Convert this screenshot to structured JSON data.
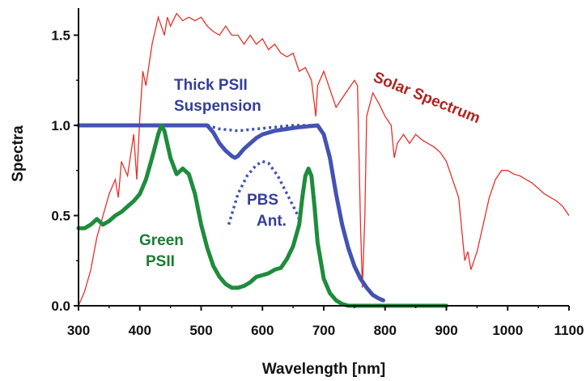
{
  "chart_data": {
    "type": "line",
    "xlabel": "Wavelength [nm]",
    "ylabel": "Spectra",
    "xlim": [
      300,
      1100
    ],
    "ylim": [
      0,
      1.65
    ],
    "xticks": [
      "300",
      "400",
      "500",
      "600",
      "700",
      "800",
      "900",
      "1000",
      "1100"
    ],
    "yticks": [
      "0.0",
      "0.5",
      "1.0",
      "1.5"
    ],
    "grid": false,
    "legend": "none",
    "colors": {
      "solar": "#e8302a",
      "thick": "#4452b4",
      "green": "#1e8c3c",
      "solar_text": "#b02320",
      "thick_text": "#333f98",
      "green_text": "#1d7a34"
    },
    "annotations": [
      {
        "text": "Solar Spectrum",
        "series": "solar"
      },
      {
        "text": "Thick PSII",
        "series": "thick"
      },
      {
        "text": "Suspension",
        "series": "thick"
      },
      {
        "text": "PBS",
        "series": "thick"
      },
      {
        "text": "Ant.",
        "series": "thick"
      },
      {
        "text": "Green",
        "series": "green"
      },
      {
        "text": "PSII",
        "series": "green"
      }
    ],
    "series": [
      {
        "id": "solar",
        "style": "solid-thin",
        "points": [
          [
            300,
            0
          ],
          [
            310,
            0.08
          ],
          [
            320,
            0.2
          ],
          [
            330,
            0.38
          ],
          [
            340,
            0.5
          ],
          [
            350,
            0.62
          ],
          [
            360,
            0.7
          ],
          [
            365,
            0.6
          ],
          [
            370,
            0.8
          ],
          [
            380,
            0.72
          ],
          [
            390,
            0.95
          ],
          [
            395,
            0.7
          ],
          [
            400,
            1.05
          ],
          [
            405,
            1.3
          ],
          [
            410,
            1.22
          ],
          [
            420,
            1.45
          ],
          [
            430,
            1.6
          ],
          [
            440,
            1.5
          ],
          [
            445,
            1.6
          ],
          [
            450,
            1.55
          ],
          [
            460,
            1.62
          ],
          [
            470,
            1.58
          ],
          [
            480,
            1.6
          ],
          [
            490,
            1.58
          ],
          [
            500,
            1.6
          ],
          [
            510,
            1.55
          ],
          [
            520,
            1.52
          ],
          [
            530,
            1.5
          ],
          [
            540,
            1.55
          ],
          [
            550,
            1.5
          ],
          [
            560,
            1.5
          ],
          [
            570,
            1.45
          ],
          [
            580,
            1.5
          ],
          [
            590,
            1.45
          ],
          [
            600,
            1.48
          ],
          [
            610,
            1.42
          ],
          [
            620,
            1.45
          ],
          [
            630,
            1.4
          ],
          [
            640,
            1.38
          ],
          [
            650,
            1.4
          ],
          [
            660,
            1.3
          ],
          [
            670,
            1.32
          ],
          [
            680,
            1.25
          ],
          [
            687,
            1.05
          ],
          [
            690,
            1.22
          ],
          [
            700,
            1.3
          ],
          [
            710,
            1.2
          ],
          [
            720,
            1.1
          ],
          [
            730,
            1.15
          ],
          [
            740,
            1.2
          ],
          [
            750,
            1.25
          ],
          [
            755,
            1.22
          ],
          [
            760,
            0.45
          ],
          [
            763,
            0.1
          ],
          [
            767,
            0.5
          ],
          [
            770,
            1.05
          ],
          [
            780,
            1.18
          ],
          [
            790,
            1.12
          ],
          [
            800,
            1.05
          ],
          [
            810,
            1.0
          ],
          [
            815,
            0.82
          ],
          [
            820,
            0.9
          ],
          [
            830,
            0.95
          ],
          [
            840,
            0.9
          ],
          [
            850,
            0.95
          ],
          [
            860,
            0.92
          ],
          [
            870,
            0.9
          ],
          [
            880,
            0.88
          ],
          [
            890,
            0.85
          ],
          [
            900,
            0.8
          ],
          [
            910,
            0.7
          ],
          [
            920,
            0.6
          ],
          [
            930,
            0.25
          ],
          [
            935,
            0.3
          ],
          [
            940,
            0.2
          ],
          [
            950,
            0.3
          ],
          [
            960,
            0.45
          ],
          [
            970,
            0.6
          ],
          [
            980,
            0.7
          ],
          [
            990,
            0.75
          ],
          [
            1000,
            0.75
          ],
          [
            1010,
            0.73
          ],
          [
            1020,
            0.72
          ],
          [
            1030,
            0.7
          ],
          [
            1040,
            0.68
          ],
          [
            1050,
            0.65
          ],
          [
            1060,
            0.62
          ],
          [
            1070,
            0.6
          ],
          [
            1080,
            0.58
          ],
          [
            1090,
            0.55
          ],
          [
            1100,
            0.5
          ]
        ]
      },
      {
        "id": "thick",
        "style": "solid-thick",
        "points": [
          [
            300,
            1.0
          ],
          [
            350,
            1.0
          ],
          [
            400,
            1.0
          ],
          [
            450,
            1.0
          ],
          [
            500,
            1.0
          ],
          [
            510,
            1.0
          ],
          [
            520,
            0.96
          ],
          [
            530,
            0.9
          ],
          [
            540,
            0.86
          ],
          [
            550,
            0.83
          ],
          [
            555,
            0.82
          ],
          [
            560,
            0.83
          ],
          [
            570,
            0.87
          ],
          [
            580,
            0.9
          ],
          [
            590,
            0.93
          ],
          [
            600,
            0.95
          ],
          [
            620,
            0.97
          ],
          [
            640,
            0.98
          ],
          [
            660,
            0.99
          ],
          [
            690,
            1.0
          ],
          [
            700,
            0.95
          ],
          [
            710,
            0.82
          ],
          [
            720,
            0.62
          ],
          [
            730,
            0.45
          ],
          [
            740,
            0.32
          ],
          [
            750,
            0.22
          ],
          [
            760,
            0.15
          ],
          [
            770,
            0.1
          ],
          [
            780,
            0.06
          ],
          [
            790,
            0.04
          ],
          [
            797,
            0.03
          ]
        ]
      },
      {
        "id": "thick-dotted",
        "style": "dotted",
        "points": [
          [
            510,
            1.0
          ],
          [
            530,
            0.98
          ],
          [
            560,
            0.97
          ],
          [
            590,
            0.98
          ],
          [
            620,
            0.99
          ],
          [
            650,
            1.0
          ],
          [
            680,
            1.0
          ]
        ]
      },
      {
        "id": "pbs",
        "style": "dotted",
        "points": [
          [
            545,
            0.45
          ],
          [
            560,
            0.62
          ],
          [
            575,
            0.72
          ],
          [
            590,
            0.78
          ],
          [
            600,
            0.8
          ],
          [
            610,
            0.79
          ],
          [
            625,
            0.72
          ],
          [
            640,
            0.62
          ],
          [
            655,
            0.52
          ],
          [
            660,
            0.48
          ]
        ]
      },
      {
        "id": "green",
        "style": "solid-thick",
        "points": [
          [
            300,
            0.43
          ],
          [
            310,
            0.43
          ],
          [
            320,
            0.45
          ],
          [
            330,
            0.48
          ],
          [
            340,
            0.45
          ],
          [
            350,
            0.47
          ],
          [
            360,
            0.5
          ],
          [
            370,
            0.52
          ],
          [
            380,
            0.55
          ],
          [
            390,
            0.58
          ],
          [
            400,
            0.62
          ],
          [
            410,
            0.7
          ],
          [
            420,
            0.82
          ],
          [
            430,
            0.95
          ],
          [
            435,
            1.0
          ],
          [
            440,
            0.97
          ],
          [
            450,
            0.82
          ],
          [
            460,
            0.73
          ],
          [
            470,
            0.76
          ],
          [
            480,
            0.73
          ],
          [
            490,
            0.62
          ],
          [
            500,
            0.45
          ],
          [
            510,
            0.32
          ],
          [
            520,
            0.22
          ],
          [
            530,
            0.16
          ],
          [
            540,
            0.12
          ],
          [
            550,
            0.1
          ],
          [
            560,
            0.1
          ],
          [
            570,
            0.11
          ],
          [
            580,
            0.13
          ],
          [
            590,
            0.16
          ],
          [
            600,
            0.17
          ],
          [
            610,
            0.18
          ],
          [
            620,
            0.2
          ],
          [
            630,
            0.21
          ],
          [
            640,
            0.26
          ],
          [
            650,
            0.33
          ],
          [
            660,
            0.45
          ],
          [
            665,
            0.6
          ],
          [
            670,
            0.72
          ],
          [
            675,
            0.76
          ],
          [
            680,
            0.72
          ],
          [
            685,
            0.55
          ],
          [
            690,
            0.35
          ],
          [
            700,
            0.15
          ],
          [
            710,
            0.07
          ],
          [
            720,
            0.03
          ],
          [
            730,
            0.01
          ],
          [
            740,
            0.0
          ],
          [
            800,
            0.0
          ],
          [
            900,
            0.0
          ]
        ]
      }
    ]
  }
}
